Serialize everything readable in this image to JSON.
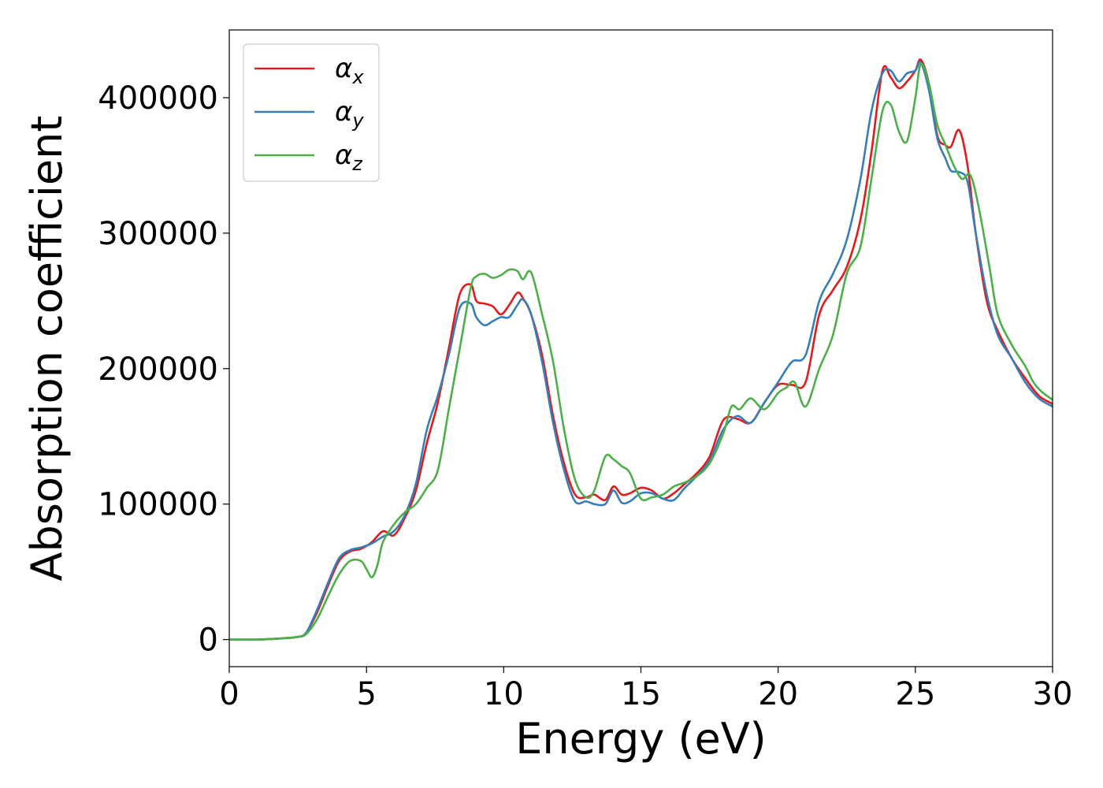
{
  "chart_data": {
    "type": "line",
    "title": "",
    "xlabel": "Energy (eV)",
    "ylabel": "Absorption coefficient",
    "xlim": [
      0,
      30
    ],
    "ylim": [
      -20000,
      450000
    ],
    "xticks": [
      0,
      5,
      10,
      15,
      20,
      25,
      30
    ],
    "xtick_labels": [
      "0",
      "5",
      "10",
      "15",
      "20",
      "25",
      "30"
    ],
    "yticks": [
      0,
      100000,
      200000,
      300000,
      400000
    ],
    "ytick_labels": [
      "0",
      "100000",
      "200000",
      "300000",
      "400000"
    ],
    "grid": false,
    "legend_position": "top-left",
    "series": [
      {
        "name": "α",
        "subscript": "x",
        "color": "#e41a1c",
        "x": [
          0,
          1,
          2,
          2.5,
          2.8,
          3.2,
          3.6,
          4.0,
          4.4,
          4.8,
          5.2,
          5.6,
          6.0,
          6.4,
          6.8,
          7.2,
          7.6,
          8.0,
          8.4,
          8.8,
          9.0,
          9.3,
          9.6,
          9.9,
          10.2,
          10.5,
          10.7,
          11.0,
          11.4,
          11.8,
          12.2,
          12.6,
          13.0,
          13.3,
          13.7,
          14.0,
          14.3,
          14.6,
          15.0,
          15.4,
          15.8,
          16.2,
          16.6,
          17.0,
          17.5,
          18.0,
          18.5,
          19.0,
          19.5,
          20.0,
          20.5,
          21.0,
          21.5,
          22.0,
          22.5,
          23.0,
          23.4,
          23.8,
          24.1,
          24.4,
          24.7,
          25.0,
          25.2,
          25.5,
          25.8,
          26.1,
          26.3,
          26.6,
          26.9,
          27.2,
          27.6,
          28.0,
          28.5,
          29.0,
          29.5,
          30.0
        ],
        "y": [
          0,
          0,
          1000,
          2000,
          5000,
          20000,
          40000,
          58000,
          65000,
          67000,
          72000,
          80000,
          77000,
          90000,
          110000,
          145000,
          175000,
          215000,
          255000,
          262000,
          250000,
          248000,
          246000,
          240000,
          247000,
          256000,
          252000,
          240000,
          210000,
          165000,
          130000,
          107000,
          105000,
          107000,
          103000,
          113000,
          107000,
          108000,
          112000,
          110000,
          104000,
          108000,
          115000,
          122000,
          135000,
          162000,
          163000,
          160000,
          175000,
          188000,
          188000,
          190000,
          240000,
          258000,
          275000,
          310000,
          360000,
          420000,
          415000,
          407000,
          412000,
          420000,
          428000,
          410000,
          372000,
          365000,
          364000,
          376000,
          350000,
          300000,
          250000,
          228000,
          208000,
          193000,
          180000,
          174000
        ]
      },
      {
        "name": "α",
        "subscript": "y",
        "color": "#377eb8",
        "x": [
          0,
          1,
          2,
          2.5,
          2.8,
          3.2,
          3.6,
          4.0,
          4.4,
          4.8,
          5.2,
          5.6,
          6.0,
          6.4,
          6.8,
          7.2,
          7.6,
          8.0,
          8.4,
          8.8,
          9.0,
          9.3,
          9.6,
          9.9,
          10.2,
          10.5,
          10.7,
          11.0,
          11.4,
          11.8,
          12.2,
          12.6,
          13.0,
          13.3,
          13.7,
          14.0,
          14.3,
          14.6,
          15.0,
          15.4,
          15.8,
          16.2,
          16.6,
          17.0,
          17.5,
          18.0,
          18.5,
          19.0,
          19.5,
          20.0,
          20.5,
          21.0,
          21.5,
          22.0,
          22.5,
          23.0,
          23.4,
          23.8,
          24.1,
          24.4,
          24.7,
          25.0,
          25.2,
          25.5,
          25.8,
          26.1,
          26.3,
          26.6,
          26.9,
          27.2,
          27.6,
          28.0,
          28.5,
          29.0,
          29.5,
          30.0
        ],
        "y": [
          0,
          0,
          1000,
          2000,
          5000,
          22000,
          42000,
          60000,
          66000,
          68000,
          71000,
          76000,
          80000,
          92000,
          115000,
          155000,
          180000,
          210000,
          245000,
          248000,
          238000,
          232000,
          235000,
          238000,
          238000,
          247000,
          251000,
          240000,
          205000,
          160000,
          125000,
          102000,
          102000,
          100000,
          100000,
          110000,
          101000,
          102000,
          108000,
          108000,
          104000,
          103000,
          112000,
          120000,
          132000,
          155000,
          165000,
          160000,
          175000,
          190000,
          205000,
          210000,
          250000,
          270000,
          295000,
          340000,
          390000,
          418000,
          420000,
          412000,
          418000,
          420000,
          426000,
          405000,
          370000,
          355000,
          346000,
          345000,
          338000,
          300000,
          255000,
          225000,
          208000,
          190000,
          178000,
          172000
        ]
      },
      {
        "name": "α",
        "subscript": "z",
        "color": "#4daf4a",
        "x": [
          0,
          1,
          2,
          2.5,
          2.8,
          3.2,
          3.6,
          4.0,
          4.4,
          4.8,
          5.0,
          5.2,
          5.4,
          5.6,
          6.0,
          6.4,
          6.8,
          7.2,
          7.6,
          8.0,
          8.4,
          8.8,
          9.0,
          9.3,
          9.6,
          9.9,
          10.2,
          10.5,
          10.7,
          11.0,
          11.4,
          11.8,
          12.2,
          12.6,
          13.0,
          13.3,
          13.7,
          14.0,
          14.3,
          14.6,
          15.0,
          15.4,
          15.8,
          16.2,
          16.6,
          17.0,
          17.5,
          18.0,
          18.3,
          18.6,
          19.0,
          19.5,
          20.0,
          20.3,
          20.6,
          21.0,
          21.5,
          22.0,
          22.5,
          23.0,
          23.4,
          23.8,
          24.1,
          24.4,
          24.7,
          25.0,
          25.2,
          25.5,
          25.8,
          26.1,
          26.4,
          26.7,
          27.0,
          27.3,
          27.7,
          28.0,
          28.5,
          29.0,
          29.3,
          29.6,
          30.0
        ],
        "y": [
          0,
          0,
          1000,
          2000,
          4000,
          15000,
          32000,
          48000,
          58000,
          58000,
          52000,
          46000,
          55000,
          72000,
          85000,
          94000,
          100000,
          112000,
          125000,
          170000,
          215000,
          260000,
          268000,
          270000,
          267000,
          269000,
          273000,
          272000,
          266000,
          271000,
          240000,
          205000,
          155000,
          118000,
          105000,
          110000,
          135000,
          133000,
          128000,
          123000,
          104000,
          105000,
          107000,
          113000,
          116000,
          120000,
          130000,
          152000,
          172000,
          170000,
          178000,
          170000,
          182000,
          186000,
          190000,
          172000,
          200000,
          225000,
          270000,
          290000,
          340000,
          390000,
          395000,
          375000,
          368000,
          400000,
          425000,
          410000,
          380000,
          365000,
          350000,
          340000,
          343000,
          320000,
          275000,
          240000,
          218000,
          202000,
          190000,
          183000,
          177000
        ]
      }
    ]
  }
}
